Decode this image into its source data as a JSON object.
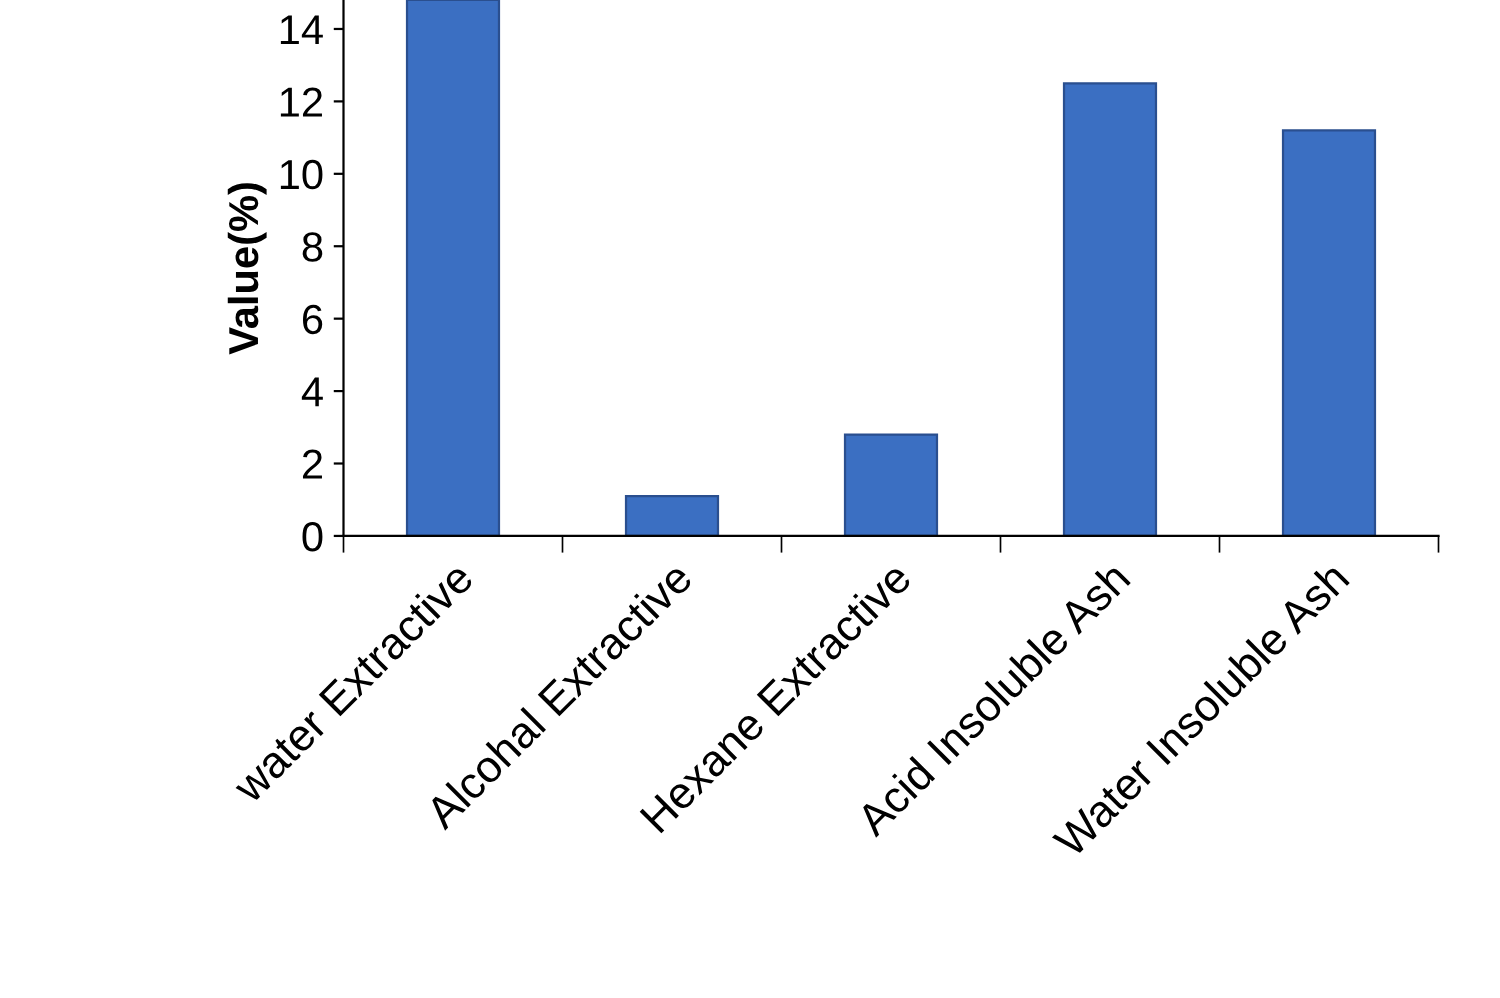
{
  "chart_data": {
    "type": "bar",
    "ylabel": "Value(%)",
    "categories": [
      "water Extractive",
      "Alcohal Extractive",
      "Hexane Extractive",
      "Acid Insoluble Ash",
      "Water Insoluble Ash"
    ],
    "values": [
      14.8,
      1.1,
      2.8,
      12.5,
      11.2
    ],
    "color": "#3b6fc2",
    "ylim": [
      0,
      14.8
    ],
    "yticks": [
      0,
      2,
      4,
      6,
      8,
      10,
      12,
      14
    ],
    "grid": false,
    "legend": false
  }
}
